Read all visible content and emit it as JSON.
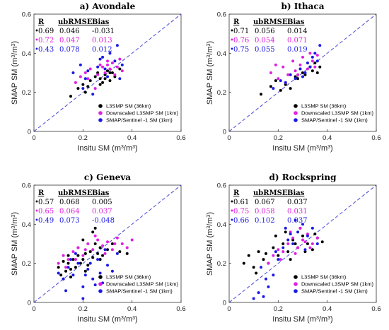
{
  "chart_data": [
    {
      "type": "scatter",
      "title": "a) Avondale",
      "xlabel": "Insitu SM (m³/m³)",
      "ylabel": "SMAP SM (m³/m³)",
      "xlim": [
        0,
        0.6
      ],
      "ylim": [
        0,
        0.6
      ],
      "xticks": [
        "0",
        "0.2",
        "0.4",
        "0.6"
      ],
      "yticks": [
        "0",
        "0.2",
        "0.4",
        "0.6"
      ],
      "one_to_one_line": true,
      "legend": "bottom-right",
      "stats_header": [
        "R",
        "ubRMSE",
        "Bias"
      ],
      "series": [
        {
          "name": "L3SMP SM (36km)",
          "color": "#000000",
          "R": "0.69",
          "ubRMSE": "0.046",
          "Bias": "-0.031",
          "x": [
            0.15,
            0.18,
            0.2,
            0.21,
            0.22,
            0.23,
            0.25,
            0.26,
            0.27,
            0.28,
            0.29,
            0.3,
            0.31,
            0.32,
            0.33,
            0.35,
            0.27,
            0.29,
            0.31
          ],
          "y": [
            0.18,
            0.22,
            0.24,
            0.2,
            0.23,
            0.26,
            0.28,
            0.3,
            0.27,
            0.25,
            0.29,
            0.31,
            0.26,
            0.3,
            0.28,
            0.32,
            0.24,
            0.27,
            0.3
          ]
        },
        {
          "name": "Downscaled L3SMP SM (1km)",
          "color": "#e020e0",
          "R": "0.72",
          "ubRMSE": "0.047",
          "Bias": "0.013",
          "x": [
            0.17,
            0.19,
            0.21,
            0.23,
            0.25,
            0.27,
            0.28,
            0.29,
            0.3,
            0.31,
            0.32,
            0.33,
            0.34,
            0.35,
            0.36,
            0.22,
            0.26,
            0.3
          ],
          "y": [
            0.25,
            0.28,
            0.3,
            0.32,
            0.22,
            0.34,
            0.33,
            0.3,
            0.36,
            0.32,
            0.35,
            0.29,
            0.33,
            0.37,
            0.31,
            0.27,
            0.29,
            0.34
          ]
        },
        {
          "name": "SMAP/Sentinel -1 SM (1km)",
          "color": "#1a1ae6",
          "R": "0.43",
          "ubRMSE": "0.078",
          "Bias": "0.012",
          "x": [
            0.16,
            0.19,
            0.21,
            0.22,
            0.24,
            0.26,
            0.27,
            0.28,
            0.3,
            0.31,
            0.33,
            0.35,
            0.36,
            0.2,
            0.29,
            0.34
          ],
          "y": [
            0.3,
            0.34,
            0.27,
            0.31,
            0.19,
            0.33,
            0.37,
            0.38,
            0.28,
            0.4,
            0.36,
            0.27,
            0.34,
            0.22,
            0.32,
            0.44
          ]
        }
      ]
    },
    {
      "type": "scatter",
      "title": "b) Ithaca",
      "xlabel": "Insitu SM (m³/m³)",
      "ylabel": "SMAP SM (m³/m³)",
      "xlim": [
        0,
        0.6
      ],
      "ylim": [
        0,
        0.6
      ],
      "xticks": [
        "0",
        "0.2",
        "0.4",
        "0.6"
      ],
      "yticks": [
        "0",
        "0.2",
        "0.4",
        "0.6"
      ],
      "one_to_one_line": true,
      "legend": "bottom-right",
      "stats_header": [
        "R",
        "ubRMSE",
        "Bias"
      ],
      "series": [
        {
          "name": "L3SMP SM (36km)",
          "color": "#000000",
          "R": "0.71",
          "ubRMSE": "0.056",
          "Bias": "0.014",
          "x": [
            0.13,
            0.17,
            0.19,
            0.21,
            0.23,
            0.25,
            0.27,
            0.28,
            0.3,
            0.31,
            0.33,
            0.34,
            0.35,
            0.36,
            0.37
          ],
          "y": [
            0.19,
            0.23,
            0.26,
            0.21,
            0.24,
            0.22,
            0.28,
            0.27,
            0.3,
            0.29,
            0.33,
            0.31,
            0.35,
            0.3,
            0.33
          ]
        },
        {
          "name": "Downscaled L3SMP SM (1km)",
          "color": "#e020e0",
          "R": "0.76",
          "ubRMSE": "0.054",
          "Bias": "0.071",
          "x": [
            0.17,
            0.19,
            0.2,
            0.22,
            0.24,
            0.26,
            0.27,
            0.29,
            0.3,
            0.32,
            0.33,
            0.34,
            0.35,
            0.36,
            0.23,
            0.28
          ],
          "y": [
            0.3,
            0.34,
            0.27,
            0.33,
            0.29,
            0.36,
            0.31,
            0.34,
            0.38,
            0.32,
            0.4,
            0.36,
            0.33,
            0.39,
            0.25,
            0.29
          ]
        },
        {
          "name": "SMAP/Sentinel -1 SM (1km)",
          "color": "#1a1ae6",
          "R": "0.75",
          "ubRMSE": "0.055",
          "Bias": "0.019",
          "x": [
            0.18,
            0.21,
            0.23,
            0.25,
            0.27,
            0.29,
            0.31,
            0.32,
            0.33,
            0.34,
            0.35,
            0.36,
            0.37,
            0.3
          ],
          "y": [
            0.22,
            0.26,
            0.25,
            0.29,
            0.27,
            0.32,
            0.3,
            0.35,
            0.33,
            0.38,
            0.4,
            0.36,
            0.44,
            0.28
          ]
        }
      ]
    },
    {
      "type": "scatter",
      "title": "c) Geneva",
      "xlabel": "Insitu SM (m³/m³)",
      "ylabel": "SMAP SM (m³/m³)",
      "xlim": [
        0,
        0.6
      ],
      "ylim": [
        0,
        0.6
      ],
      "xticks": [
        "0",
        "0.2",
        "0.4",
        "0.6"
      ],
      "yticks": [
        "0",
        "0.2",
        "0.4",
        "0.6"
      ],
      "one_to_one_line": true,
      "legend": "bottom-right",
      "stats_header": [
        "R",
        "ubRMSE",
        "Bias"
      ],
      "series": [
        {
          "name": "L3SMP SM (36km)",
          "color": "#000000",
          "R": "0.57",
          "ubRMSE": "0.068",
          "Bias": "0.005",
          "x": [
            0.1,
            0.11,
            0.12,
            0.13,
            0.14,
            0.15,
            0.16,
            0.17,
            0.18,
            0.19,
            0.2,
            0.21,
            0.22,
            0.23,
            0.24,
            0.25,
            0.26,
            0.27,
            0.28,
            0.3,
            0.32,
            0.35,
            0.38,
            0.12,
            0.15,
            0.18,
            0.21,
            0.24,
            0.27,
            0.14,
            0.2,
            0.25
          ],
          "y": [
            0.18,
            0.14,
            0.21,
            0.16,
            0.2,
            0.13,
            0.22,
            0.18,
            0.24,
            0.2,
            0.22,
            0.25,
            0.19,
            0.26,
            0.23,
            0.3,
            0.25,
            0.28,
            0.24,
            0.27,
            0.3,
            0.26,
            0.25,
            0.12,
            0.17,
            0.28,
            0.16,
            0.36,
            0.22,
            0.24,
            0.32,
            0.38
          ]
        },
        {
          "name": "Downscaled L3SMP SM (1km)",
          "color": "#e020e0",
          "R": "0.65",
          "ubRMSE": "0.064",
          "Bias": "0.037",
          "x": [
            0.1,
            0.12,
            0.14,
            0.16,
            0.18,
            0.2,
            0.22,
            0.24,
            0.26,
            0.28,
            0.3,
            0.32,
            0.34,
            0.36,
            0.38,
            0.4,
            0.13,
            0.17,
            0.21,
            0.25,
            0.29,
            0.33
          ],
          "y": [
            0.2,
            0.24,
            0.22,
            0.26,
            0.28,
            0.24,
            0.3,
            0.27,
            0.32,
            0.29,
            0.31,
            0.27,
            0.33,
            0.3,
            0.28,
            0.32,
            0.18,
            0.22,
            0.27,
            0.34,
            0.25,
            0.3
          ]
        },
        {
          "name": "SMAP/Sentinel -1 SM (1km)",
          "color": "#1a1ae6",
          "R": "0.49",
          "ubRMSE": "0.073",
          "Bias": "-0.048",
          "x": [
            0.1,
            0.12,
            0.14,
            0.16,
            0.18,
            0.2,
            0.22,
            0.24,
            0.26,
            0.28,
            0.3,
            0.32,
            0.34,
            0.13,
            0.17,
            0.21,
            0.25,
            0.29,
            0.2,
            0.23,
            0.27,
            0.15
          ],
          "y": [
            0.15,
            0.12,
            0.18,
            0.14,
            0.2,
            0.08,
            0.17,
            0.12,
            0.22,
            0.1,
            0.19,
            0.16,
            0.25,
            0.06,
            0.25,
            0.14,
            0.09,
            0.27,
            0.02,
            0.2,
            0.15,
            0.22
          ]
        }
      ]
    },
    {
      "type": "scatter",
      "title": "d) Rockspring",
      "xlabel": "Insitu SM (m³/m³)",
      "ylabel": "SMAP SM (m³/m³)",
      "xlim": [
        0,
        0.6
      ],
      "ylim": [
        0,
        0.6
      ],
      "xticks": [
        "0",
        "0.2",
        "0.4",
        "0.6"
      ],
      "yticks": [
        "0",
        "0.2",
        "0.4",
        "0.6"
      ],
      "one_to_one_line": true,
      "legend": "bottom-right",
      "stats_header": [
        "R",
        "ubRMSE",
        "Bias"
      ],
      "series": [
        {
          "name": "L3SMP SM (36km)",
          "color": "#000000",
          "R": "0.61",
          "ubRMSE": "0.067",
          "Bias": "0.037",
          "x": [
            0.06,
            0.08,
            0.1,
            0.12,
            0.14,
            0.16,
            0.18,
            0.2,
            0.22,
            0.24,
            0.26,
            0.28,
            0.3,
            0.32,
            0.34,
            0.36,
            0.38,
            0.11,
            0.15,
            0.19,
            0.23,
            0.27,
            0.31,
            0.35,
            0.25,
            0.29
          ],
          "y": [
            0.2,
            0.24,
            0.18,
            0.26,
            0.22,
            0.2,
            0.28,
            0.24,
            0.3,
            0.26,
            0.32,
            0.28,
            0.34,
            0.3,
            0.27,
            0.33,
            0.31,
            0.15,
            0.25,
            0.34,
            0.36,
            0.3,
            0.26,
            0.35,
            0.22,
            0.38
          ]
        },
        {
          "name": "Downscaled L3SMP SM (1km)",
          "color": "#e020e0",
          "R": "0.75",
          "ubRMSE": "0.058",
          "Bias": "0.031",
          "x": [
            0.16,
            0.18,
            0.2,
            0.22,
            0.24,
            0.26,
            0.28,
            0.3,
            0.32,
            0.34,
            0.36,
            0.21,
            0.25,
            0.29,
            0.33,
            0.27,
            0.31
          ],
          "y": [
            0.2,
            0.24,
            0.27,
            0.26,
            0.3,
            0.33,
            0.28,
            0.32,
            0.35,
            0.3,
            0.33,
            0.22,
            0.36,
            0.38,
            0.28,
            0.25,
            0.31
          ]
        },
        {
          "name": "SMAP/Sentinel -1 SM (1km)",
          "color": "#1a1ae6",
          "R": "0.66",
          "ubRMSE": "0.102",
          "Bias": "0.037",
          "x": [
            0.1,
            0.12,
            0.14,
            0.16,
            0.18,
            0.2,
            0.22,
            0.24,
            0.26,
            0.28,
            0.3,
            0.32,
            0.34,
            0.36,
            0.15,
            0.19,
            0.23,
            0.27,
            0.31,
            0.13,
            0.25
          ],
          "y": [
            0.02,
            0.05,
            0.03,
            0.08,
            0.14,
            0.22,
            0.28,
            0.32,
            0.3,
            0.36,
            0.4,
            0.34,
            0.38,
            0.3,
            0.12,
            0.26,
            0.38,
            0.42,
            0.27,
            0.18,
            0.35
          ]
        }
      ]
    }
  ]
}
